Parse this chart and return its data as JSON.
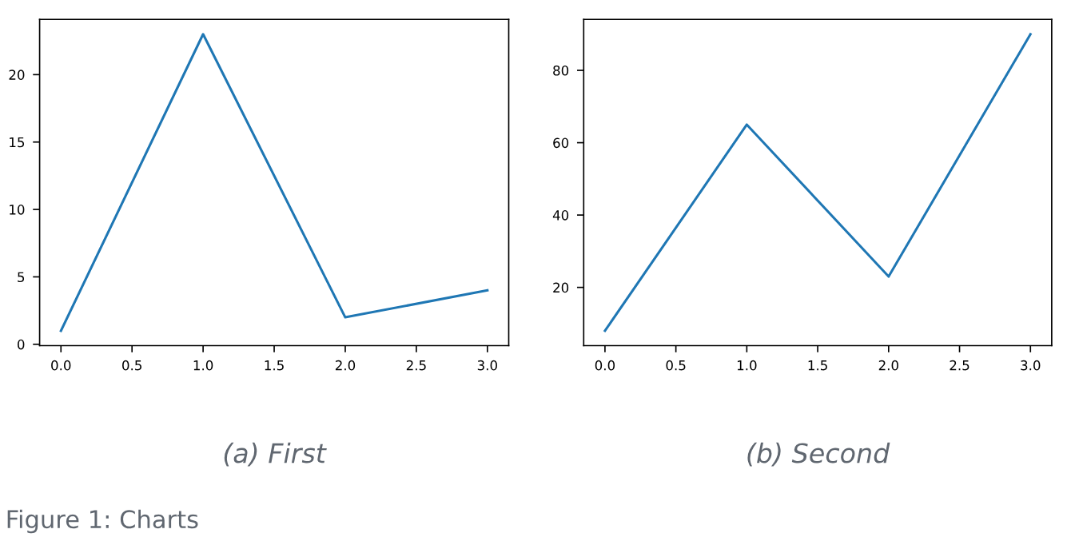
{
  "chart_data": [
    {
      "type": "line",
      "title": "(a) First",
      "x": [
        0,
        1,
        2,
        3
      ],
      "values": [
        1,
        23,
        2,
        4
      ],
      "color": "#1f77b4",
      "xlim": [
        -0.15,
        3.15
      ],
      "ylim": [
        -0.1,
        24.1
      ],
      "xticks": [
        {
          "value": 0,
          "label": "0.0"
        },
        0.5,
        {
          "value": 1,
          "label": "1.0"
        },
        1.5,
        {
          "value": 2,
          "label": "2.0"
        },
        2.5,
        {
          "value": 3,
          "label": "3.0"
        }
      ],
      "yticks": [
        0,
        5,
        10,
        15,
        20
      ],
      "annotations": [
        "Figure 1: Charts"
      ]
    },
    {
      "type": "line",
      "title": "(b) Second",
      "x": [
        0,
        1,
        2,
        3
      ],
      "values": [
        8,
        65,
        23,
        90
      ],
      "color": "#1f77b4",
      "xlim": [
        -0.15,
        3.15
      ],
      "ylim": [
        3.9,
        94.1
      ],
      "xticks": [
        {
          "value": 0,
          "label": "0.0"
        },
        0.5,
        {
          "value": 1,
          "label": "1.0"
        },
        1.5,
        {
          "value": 2,
          "label": "2.0"
        },
        2.5,
        {
          "value": 3,
          "label": "3.0"
        }
      ],
      "yticks": [
        20,
        40,
        60,
        80
      ]
    }
  ]
}
